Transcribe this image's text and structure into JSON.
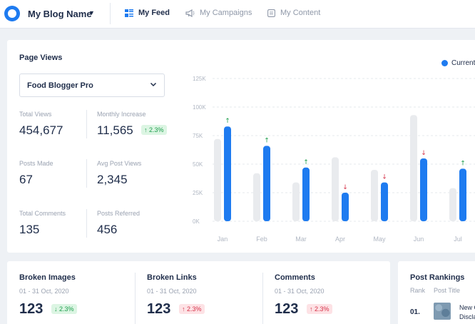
{
  "header": {
    "blog_name": "My Blog Name",
    "nav": [
      {
        "label": "My Feed",
        "icon": "feed-icon",
        "active": true
      },
      {
        "label": "My Campaigns",
        "icon": "megaphone-icon",
        "active": false
      },
      {
        "label": "My Content",
        "icon": "content-icon",
        "active": false
      }
    ]
  },
  "page_views": {
    "title": "Page Views",
    "selected_blog": "Food Blogger Pro",
    "stats": {
      "total_views": {
        "label": "Total Views",
        "value": "454,677"
      },
      "monthly_increase": {
        "label": "Monthly Increase",
        "value": "11,565",
        "change": "2.3%"
      },
      "posts_made": {
        "label": "Posts Made",
        "value": "67"
      },
      "avg_post_views": {
        "label": "Avg Post Views",
        "value": "2,345"
      },
      "total_comments": {
        "label": "Total Comments",
        "value": "135"
      },
      "posts_referred": {
        "label": "Posts Referred",
        "value": "456"
      }
    },
    "legend_label": "Current"
  },
  "chart_data": {
    "type": "bar",
    "categories": [
      "Jan",
      "Feb",
      "Mar",
      "Apr",
      "May",
      "Jun",
      "Jul"
    ],
    "y_tick_labels": [
      "0K",
      "25K",
      "50K",
      "75K",
      "100K",
      "125K"
    ],
    "ylim": [
      0,
      125
    ],
    "series": [
      {
        "values": [
          72,
          42,
          34,
          56,
          45,
          93,
          29
        ]
      },
      {
        "name": "Current",
        "values": [
          83,
          66,
          47,
          25,
          34,
          55,
          46
        ]
      }
    ],
    "trend": [
      "up",
      "up",
      "up",
      "down",
      "down",
      "down",
      "up"
    ],
    "colors": {
      "previous": "#e9ebee",
      "current": "#1e7bf0",
      "up": "#1e9e4d",
      "down": "#d6334a"
    }
  },
  "cards": [
    {
      "title": "Broken Images",
      "date": "01 - 31 Oct, 2020",
      "value": "123",
      "change": "2.3%",
      "trend": "down"
    },
    {
      "title": "Broken Links",
      "date": "01 - 31 Oct, 2020",
      "value": "123",
      "change": "2.3%",
      "trend": "up"
    },
    {
      "title": "Comments",
      "date": "01 - 31 Oct, 2020",
      "value": "123",
      "change": "2.3%",
      "trend": "up"
    }
  ],
  "rankings": {
    "title": "Post Rankings",
    "col_rank": "Rank",
    "col_title": "Post Title",
    "rows": [
      {
        "rank": "01.",
        "title_line1": "New C",
        "title_line2": "Discla"
      }
    ]
  }
}
